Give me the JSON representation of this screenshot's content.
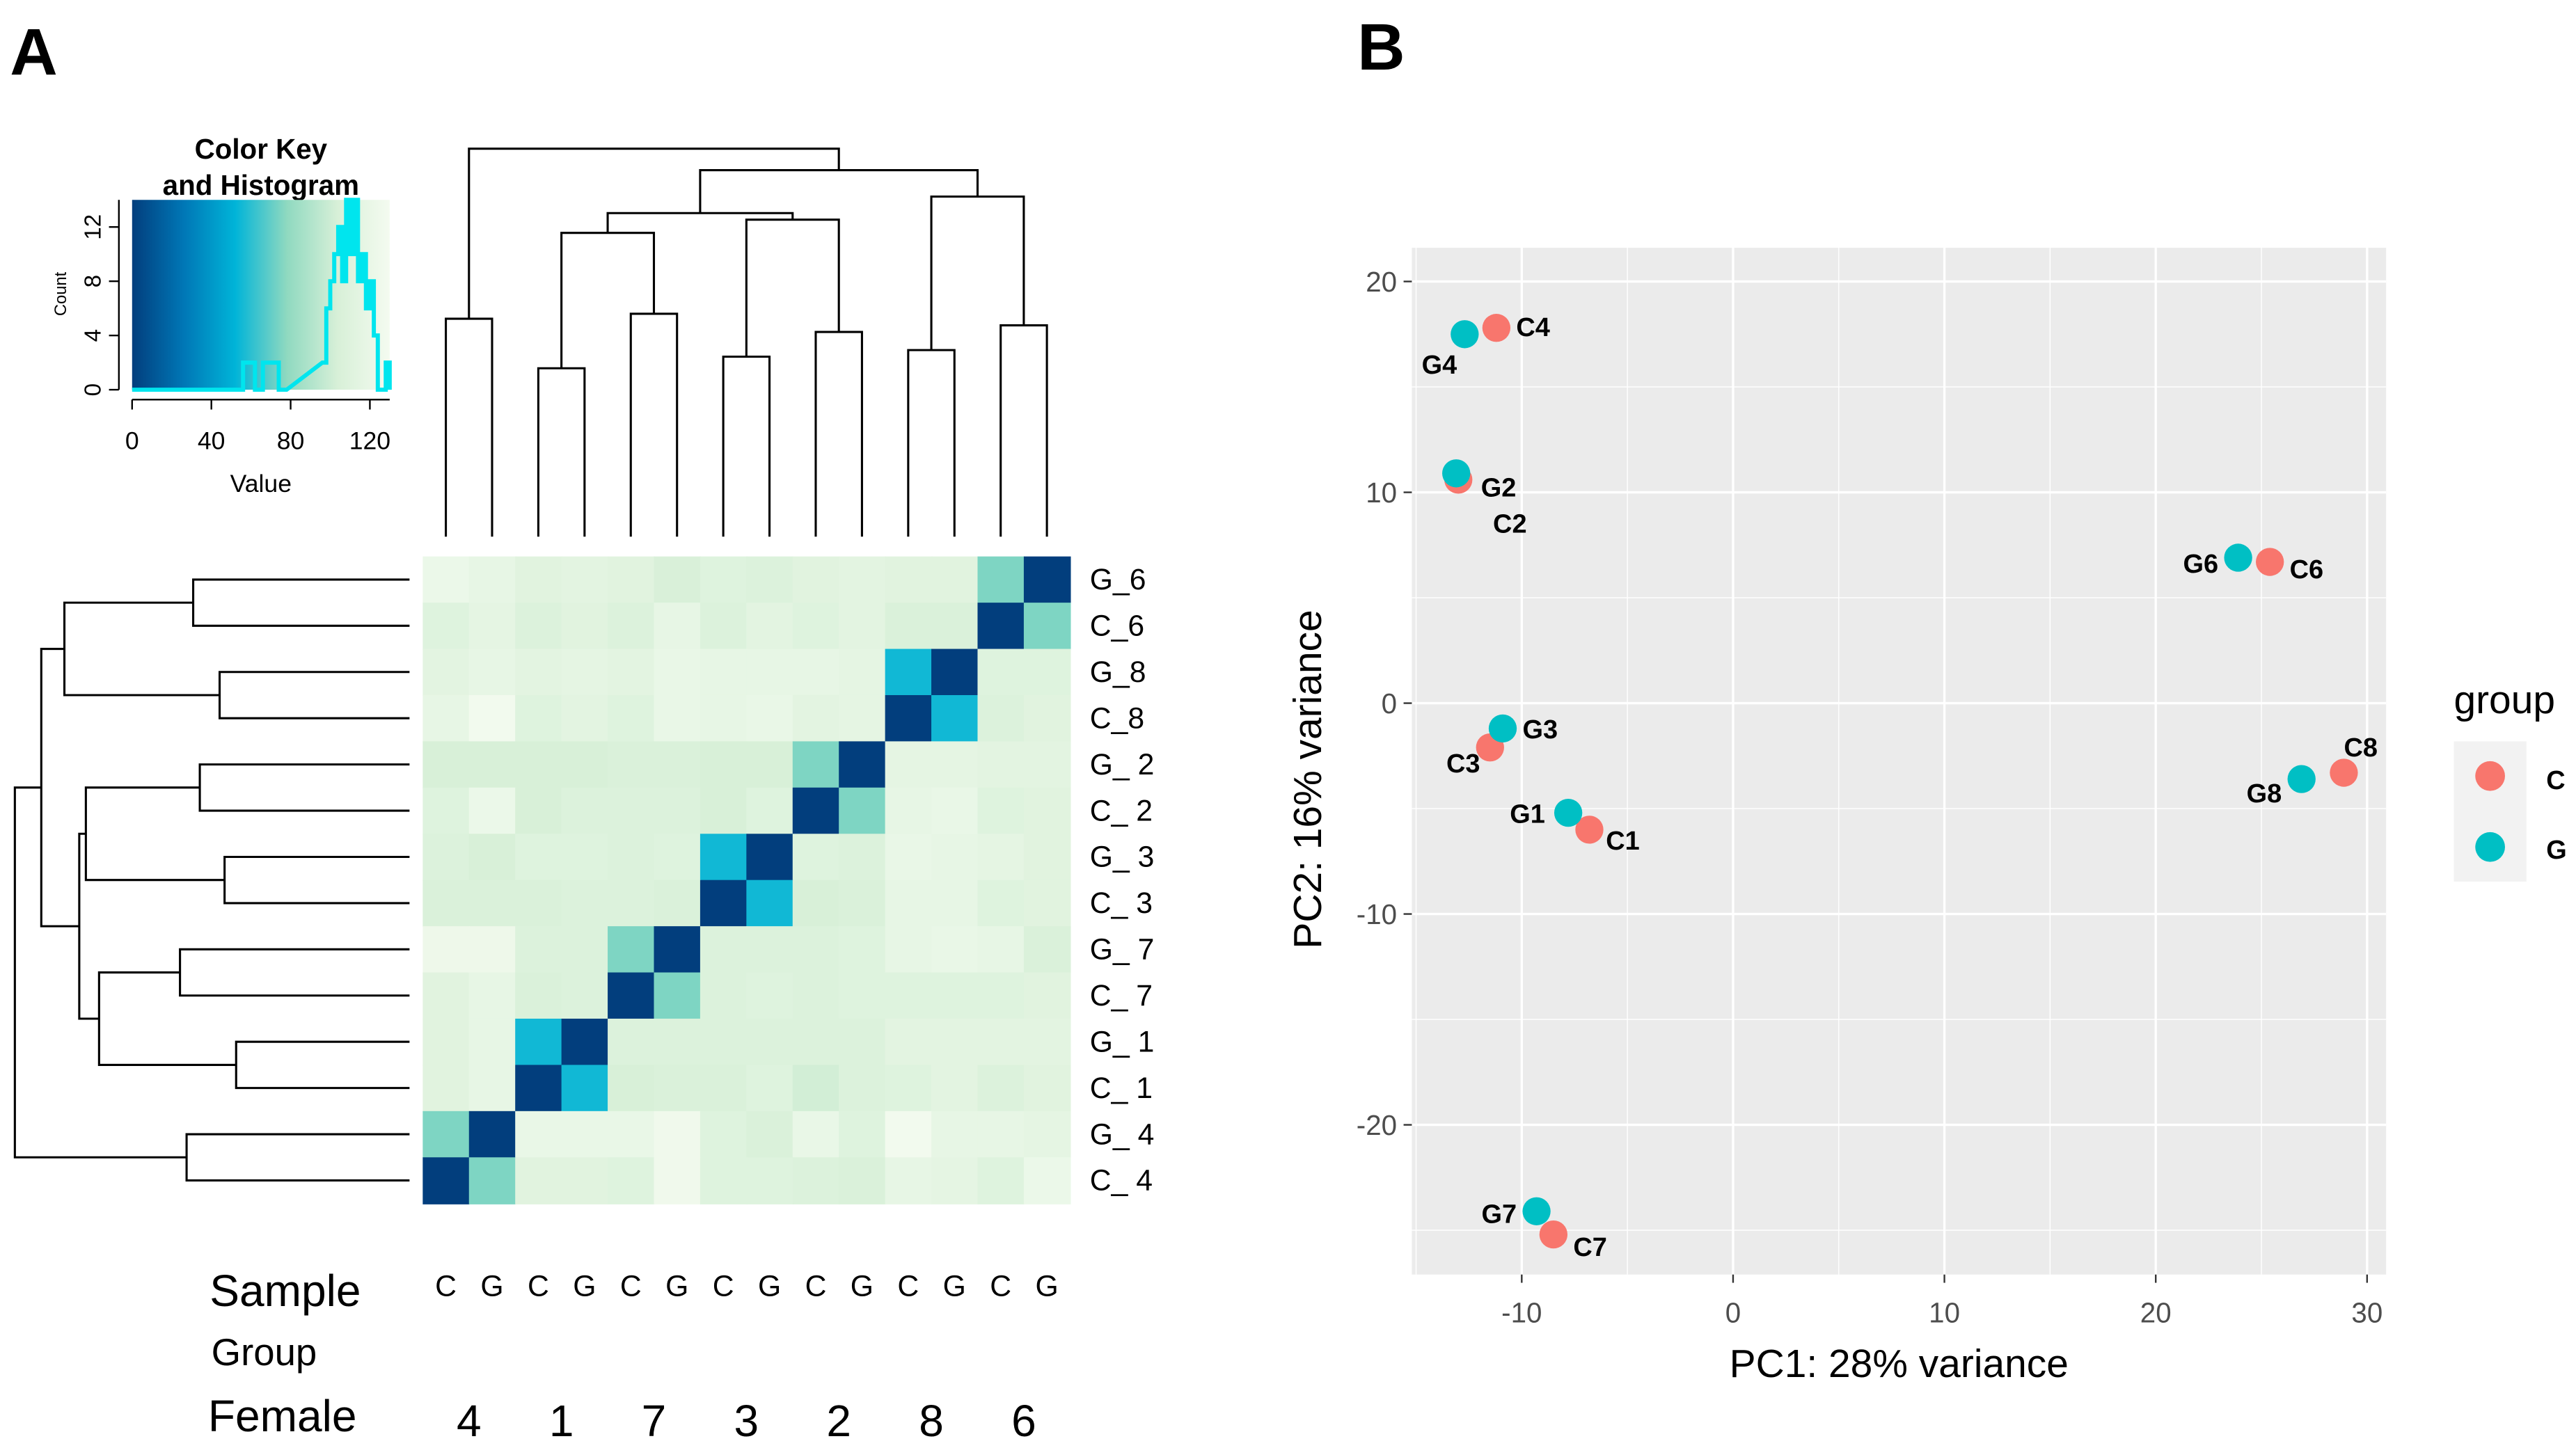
{
  "panels": {
    "a": "A",
    "b": "B"
  },
  "chart_data": [
    {
      "type": "heatmap",
      "color_key": {
        "title_line1": "Color Key",
        "title_line2": "and Histogram",
        "xlabel": "Value",
        "ylabel": "Count",
        "xticks": [
          0,
          40,
          80,
          120
        ],
        "yticks": [
          0,
          4,
          8,
          12
        ],
        "xlim": [
          0,
          130
        ],
        "ylim": [
          0,
          14
        ],
        "gradient": [
          "#023e7d",
          "#0077b6",
          "#00b4d8",
          "#8fd9c0",
          "#d8f0d8",
          "#f4fbf0"
        ],
        "histogram_color": "#00e5ee",
        "histogram": {
          "bin_start": [
            56,
            58,
            60,
            62,
            64,
            66,
            68,
            70,
            72,
            74,
            76,
            96,
            98,
            100,
            102,
            104,
            106,
            108,
            110,
            112,
            114,
            116,
            118,
            120,
            122,
            124,
            126,
            128
          ],
          "counts": [
            2,
            2,
            2,
            0,
            0,
            2,
            2,
            2,
            2,
            0,
            0,
            2,
            6,
            8,
            10,
            12,
            8,
            14,
            10,
            14,
            8,
            10,
            6,
            8,
            4,
            0,
            0,
            2
          ]
        }
      },
      "columns": [
        "C4",
        "G4",
        "C1",
        "G1",
        "C7",
        "G7",
        "C3",
        "G3",
        "C2",
        "G2",
        "C8",
        "G8",
        "C6",
        "G6"
      ],
      "column_sample_labels": [
        "C",
        "G",
        "C",
        "G",
        "C",
        "G",
        "C",
        "G",
        "C",
        "G",
        "C",
        "G",
        "C",
        "G"
      ],
      "rows": [
        "G_6",
        "C_6",
        "G_8",
        "C_8",
        "G_ 2",
        "C_ 2",
        "G_ 3",
        "C_ 3",
        "G_ 7",
        "C_ 7",
        "G_ 1",
        "C_ 1",
        "G_ 4",
        "C_ 4"
      ],
      "values": [
        [
          122,
          118,
          112,
          114,
          112,
          105,
          110,
          108,
          112,
          114,
          112,
          112,
          75,
          0
        ],
        [
          110,
          116,
          108,
          112,
          108,
          118,
          108,
          114,
          110,
          114,
          106,
          106,
          0,
          75
        ],
        [
          114,
          118,
          114,
          116,
          114,
          120,
          118,
          118,
          118,
          116,
          55,
          0,
          110,
          110
        ],
        [
          118,
          128,
          110,
          114,
          110,
          120,
          118,
          120,
          114,
          116,
          0,
          55,
          108,
          112
        ],
        [
          104,
          104,
          104,
          104,
          106,
          106,
          104,
          104,
          75,
          0,
          116,
          116,
          114,
          114
        ],
        [
          110,
          122,
          104,
          108,
          108,
          108,
          104,
          110,
          0,
          75,
          118,
          120,
          110,
          112
        ],
        [
          108,
          104,
          110,
          110,
          108,
          110,
          55,
          0,
          110,
          108,
          120,
          118,
          116,
          112
        ],
        [
          106,
          106,
          106,
          108,
          108,
          106,
          0,
          55,
          104,
          106,
          118,
          118,
          110,
          112
        ],
        [
          124,
          124,
          108,
          108,
          75,
          0,
          108,
          108,
          108,
          110,
          118,
          120,
          118,
          106
        ],
        [
          112,
          118,
          106,
          108,
          0,
          75,
          108,
          110,
          108,
          110,
          110,
          110,
          110,
          112
        ],
        [
          112,
          118,
          55,
          0,
          108,
          108,
          108,
          108,
          108,
          108,
          114,
          114,
          114,
          114
        ],
        [
          112,
          118,
          0,
          55,
          104,
          106,
          106,
          110,
          102,
          108,
          110,
          114,
          108,
          112
        ],
        [
          75,
          0,
          120,
          120,
          120,
          126,
          110,
          106,
          120,
          110,
          128,
          118,
          118,
          116
        ],
        [
          0,
          75,
          112,
          112,
          110,
          126,
          110,
          110,
          108,
          106,
          118,
          116,
          110,
          122
        ]
      ],
      "footer": {
        "sample_label": "Sample",
        "group_label": "Group",
        "female_label": "Female",
        "female_ids": [
          "4",
          "1",
          "7",
          "3",
          "2",
          "8",
          "6"
        ]
      }
    },
    {
      "type": "scatter",
      "xlabel": "PC1: 28% variance",
      "ylabel": "PC2: 16% variance",
      "xlim": [
        -15.2,
        30.9
      ],
      "ylim": [
        -27.1,
        21.6
      ],
      "xticks": [
        -10,
        0,
        10,
        20,
        30
      ],
      "yticks": [
        -20,
        -10,
        0,
        10,
        20
      ],
      "grid": true,
      "background": "#ebebeb",
      "legend": {
        "title": "group",
        "placement": "right",
        "entries": [
          {
            "name": "C",
            "color": "#F8766D"
          },
          {
            "name": "G",
            "color": "#00BFC4"
          }
        ]
      },
      "points": [
        {
          "label": "C2",
          "group": "C",
          "x": -13.0,
          "y": 10.6
        },
        {
          "label": "G2",
          "group": "G",
          "x": -13.1,
          "y": 10.9
        },
        {
          "label": "C4",
          "group": "C",
          "x": -11.2,
          "y": 17.8
        },
        {
          "label": "G4",
          "group": "G",
          "x": -12.7,
          "y": 17.5
        },
        {
          "label": "C6",
          "group": "C",
          "x": 25.4,
          "y": 6.7
        },
        {
          "label": "G6",
          "group": "G",
          "x": 23.9,
          "y": 6.9
        },
        {
          "label": "C3",
          "group": "C",
          "x": -11.5,
          "y": -2.1
        },
        {
          "label": "G3",
          "group": "G",
          "x": -10.9,
          "y": -1.2
        },
        {
          "label": "C1",
          "group": "C",
          "x": -6.8,
          "y": -6.0
        },
        {
          "label": "G1",
          "group": "G",
          "x": -7.8,
          "y": -5.2
        },
        {
          "label": "C8",
          "group": "C",
          "x": 28.9,
          "y": -3.3
        },
        {
          "label": "G8",
          "group": "G",
          "x": 26.9,
          "y": -3.6
        },
        {
          "label": "C7",
          "group": "C",
          "x": -8.5,
          "y": -25.2
        },
        {
          "label": "G7",
          "group": "G",
          "x": -9.3,
          "y": -24.1
        }
      ]
    }
  ]
}
